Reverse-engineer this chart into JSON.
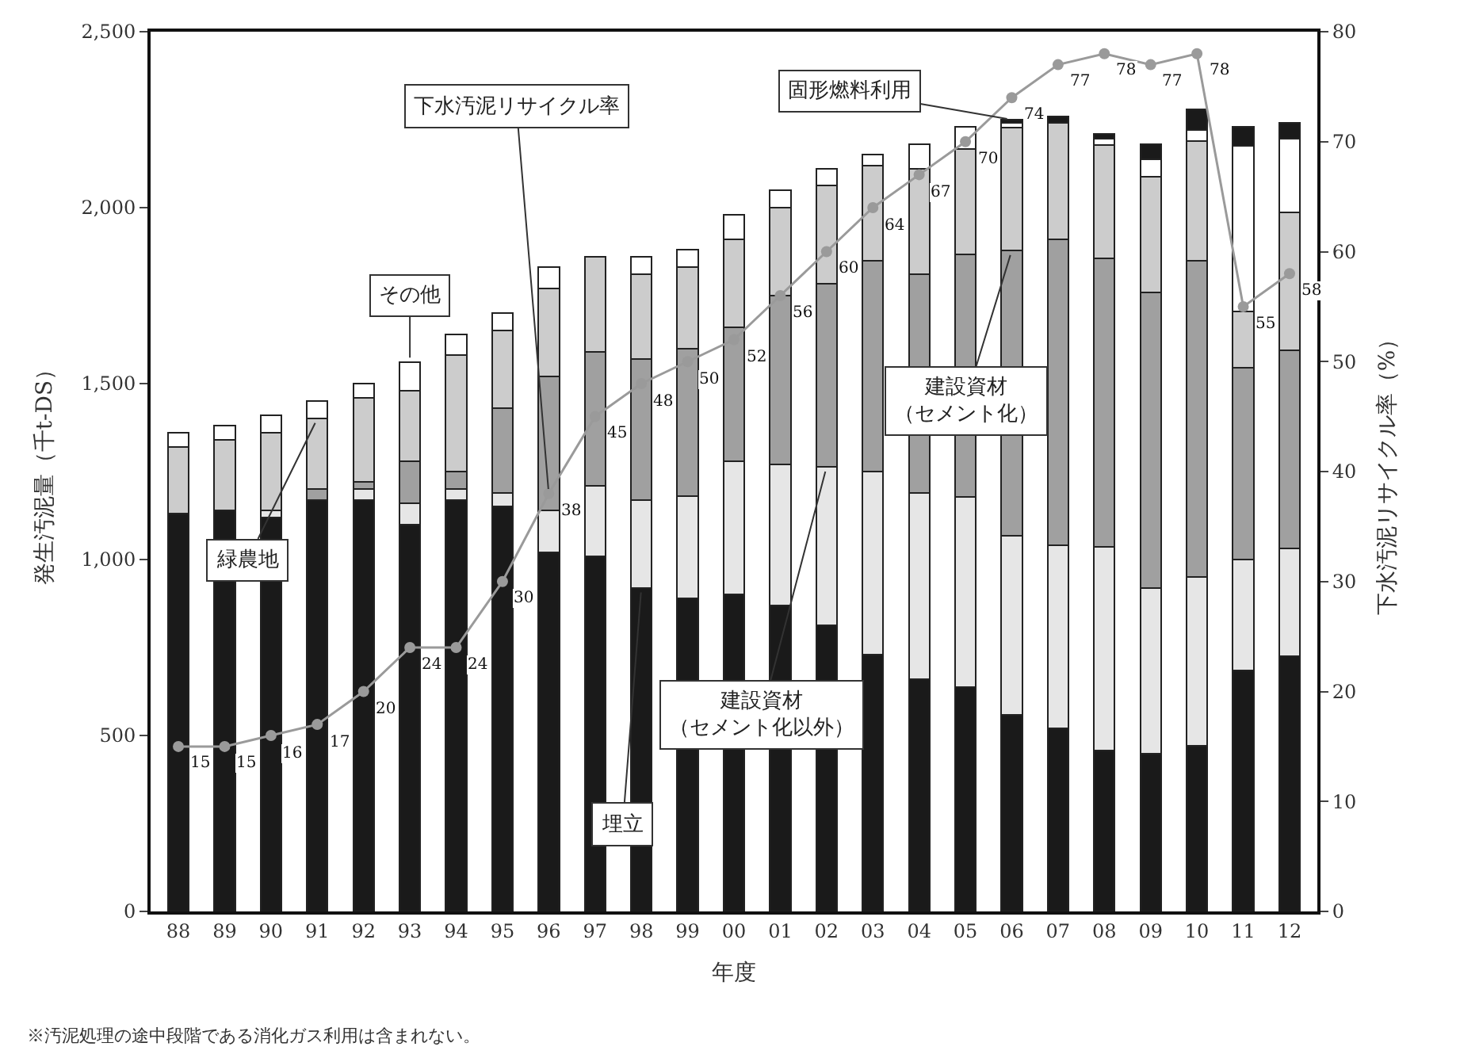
{
  "chart_data": {
    "type": "bar",
    "stacked": true,
    "xlabel": "年度",
    "ylabel": "発生汚泥量（千t-DS）",
    "y2label": "下水汚泥リサイクル率（%）",
    "categories": [
      "88",
      "89",
      "90",
      "91",
      "92",
      "93",
      "94",
      "95",
      "96",
      "97",
      "98",
      "99",
      "00",
      "01",
      "02",
      "03",
      "04",
      "05",
      "06",
      "07",
      "08",
      "09",
      "10",
      "11",
      "12"
    ],
    "series": [
      {
        "color": "#1a1a1a",
        "values": [
          1130,
          1140,
          1120,
          1170,
          1170,
          1100,
          1170,
          1150,
          1020,
          1010,
          920,
          890,
          900,
          870,
          813,
          730,
          660,
          637,
          558,
          520,
          457,
          448,
          470,
          685,
          725
        ]
      },
      {
        "color": "#e6e6e6",
        "values": [
          null,
          null,
          20,
          null,
          30,
          60,
          30,
          40,
          120,
          200,
          250,
          290,
          380,
          400,
          450,
          520,
          530,
          540,
          510,
          520,
          580,
          470,
          480,
          315,
          307
        ]
      },
      {
        "color": "#a0a0a0",
        "values": [
          null,
          null,
          null,
          30,
          20,
          120,
          50,
          240,
          380,
          380,
          400,
          420,
          380,
          480,
          520,
          600,
          620,
          690,
          810,
          870,
          820,
          840,
          900,
          546,
          563
        ]
      },
      {
        "color": "#cccccc",
        "values": [
          190,
          200,
          220,
          200,
          240,
          200,
          330,
          220,
          250,
          270,
          240,
          230,
          250,
          250,
          280,
          270,
          300,
          300,
          350,
          330,
          320,
          330,
          340,
          160,
          391
        ]
      },
      {
        "color": "#ffffff",
        "values": [
          40,
          40,
          50,
          50,
          40,
          80,
          60,
          50,
          60,
          null,
          50,
          50,
          70,
          50,
          47,
          30,
          70,
          63,
          12,
          null,
          20,
          50,
          30,
          470,
          211
        ]
      },
      {
        "color": "#1a1a1a",
        "values": [
          null,
          null,
          null,
          null,
          null,
          null,
          null,
          null,
          null,
          null,
          null,
          null,
          null,
          null,
          null,
          null,
          null,
          null,
          10,
          20,
          13,
          42,
          60,
          54,
          43
        ]
      },
      {
        "type": "line",
        "axis": "y2",
        "color": "#9a9a9a",
        "values": [
          15,
          15,
          16,
          17,
          20,
          24,
          24,
          30,
          38,
          45,
          48,
          50,
          52,
          56,
          60,
          64,
          67,
          70,
          74,
          77,
          78,
          77,
          78,
          55,
          58
        ],
        "value_labels": [
          "15",
          "15",
          "16",
          "17",
          "20",
          "24",
          "24",
          "30",
          "38",
          "45",
          "48",
          "50",
          "52",
          "56",
          "60",
          "64",
          "67",
          "70",
          "74",
          "77",
          "78",
          "77",
          "78",
          "55",
          "58"
        ]
      }
    ],
    "marker": "circle",
    "ylim": [
      0,
      2500
    ],
    "yticks": [
      0,
      500,
      {
        "value": 1000,
        "label": "1,000"
      },
      {
        "value": 1500,
        "label": "1,500"
      },
      {
        "value": 2000,
        "label": "2,000"
      },
      {
        "value": 2500,
        "label": "2,500"
      }
    ],
    "y2lim": [
      0,
      80
    ],
    "y2ticks": [
      0,
      10,
      20,
      30,
      40,
      50,
      60,
      70,
      80
    ],
    "legend": false,
    "annotations": [
      {
        "text": "その他",
        "x": "93",
        "y": 1560
      },
      {
        "text": "緑農地",
        "x": "91",
        "y": 1400
      },
      {
        "text": "下水汚泥リサイクル率",
        "x": "96",
        "y": 1187
      },
      {
        "text": "建設資材（セメント化以外）",
        "x": "02",
        "y": 1263
      },
      {
        "text": "埋立",
        "x": "98",
        "y": 920
      },
      {
        "text": "建設資材（セメント化）",
        "x": "06",
        "y": 1878
      },
      {
        "text": "固形燃料利用",
        "x": "06",
        "y": 2250
      },
      "※汚泥処理の途中段階である消化ガス利用は含まれない。"
    ]
  }
}
